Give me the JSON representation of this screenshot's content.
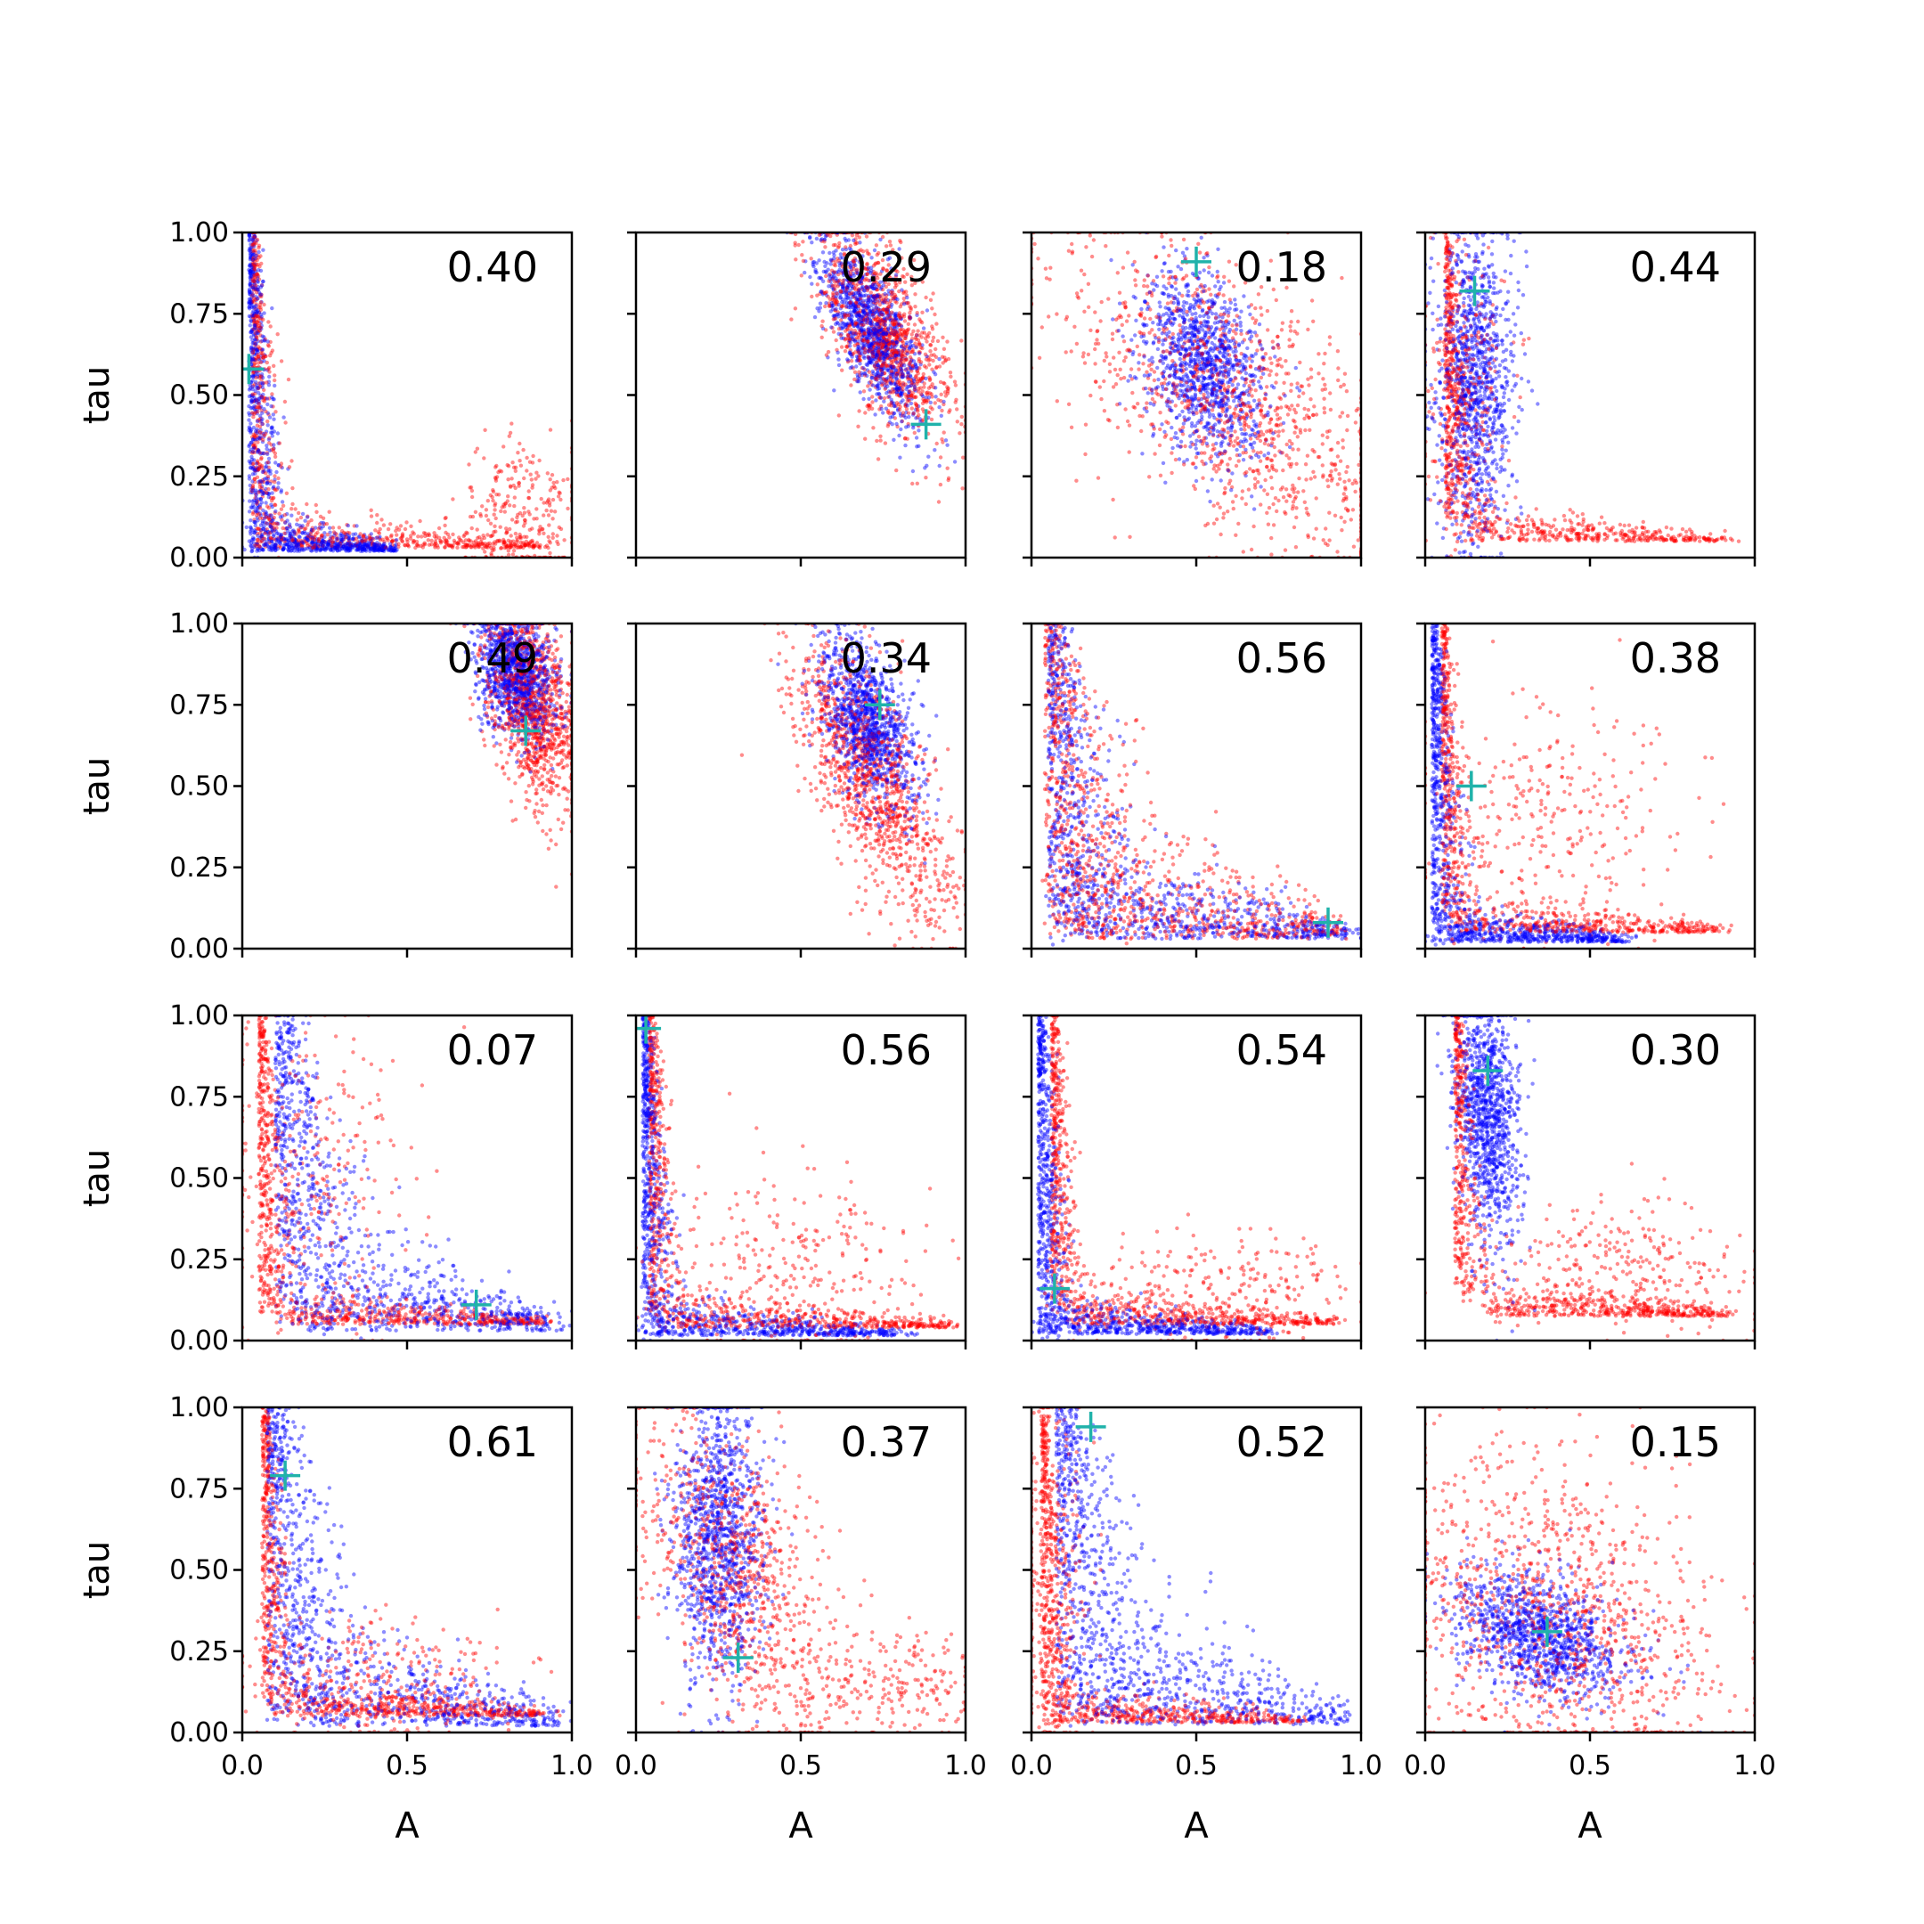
{
  "chart_data": {
    "type": "scatter",
    "layout": "4x4 grid of scatter subplots",
    "xlabel": "A",
    "ylabel": "tau",
    "xlim": [
      0,
      1
    ],
    "ylim": [
      0,
      1
    ],
    "xticks": [
      "0.0",
      "0.5",
      "1.0"
    ],
    "yticks": [
      "0.00",
      "0.25",
      "0.50",
      "0.75",
      "1.00"
    ],
    "colors": {
      "series_a": "#0000ff",
      "series_b": "#ff0000",
      "marker": "#20b2aa"
    },
    "panels": [
      {
        "corr": "0.40",
        "marker": [
          0.02,
          0.58
        ],
        "blue": {
          "shape": "L",
          "cx": 0.04,
          "cy": 0.04,
          "tail": 0.45
        },
        "red": {
          "shape": "L",
          "cx": 0.06,
          "cy": 0.06,
          "tail": 0.9,
          "extra": [
            0.85,
            0.12,
            0.1,
            0.12
          ]
        }
      },
      {
        "corr": "0.29",
        "marker": [
          0.88,
          0.41
        ],
        "blue": {
          "shape": "band",
          "cx": 0.72,
          "cy": 0.7,
          "sx": 0.08,
          "sy": 0.14,
          "rho": -0.7
        },
        "red": {
          "shape": "band",
          "cx": 0.75,
          "cy": 0.7,
          "sx": 0.1,
          "sy": 0.16,
          "rho": -0.6
        }
      },
      {
        "corr": "0.18",
        "marker": [
          0.5,
          0.91
        ],
        "blue": {
          "shape": "blob",
          "cx": 0.52,
          "cy": 0.6,
          "sx": 0.09,
          "sy": 0.14,
          "rho": -0.3
        },
        "red": {
          "shape": "blob",
          "cx": 0.6,
          "cy": 0.5,
          "sx": 0.25,
          "sy": 0.25,
          "rho": -0.6
        }
      },
      {
        "corr": "0.44",
        "marker": [
          0.15,
          0.82
        ],
        "blue": {
          "shape": "vbar",
          "cx": 0.15,
          "cy": 0.55,
          "sx": 0.06,
          "sy": 0.25,
          "rho": 0
        },
        "red": {
          "shape": "L",
          "cx": 0.12,
          "cy": 0.1,
          "tail": 0.9,
          "extra": [
            0.12,
            0.5,
            0.07,
            0.22
          ]
        }
      },
      {
        "corr": "0.49",
        "marker": [
          0.86,
          0.67
        ],
        "blue": {
          "shape": "blob",
          "cx": 0.83,
          "cy": 0.85,
          "sx": 0.06,
          "sy": 0.1,
          "rho": -0.3
        },
        "red": {
          "shape": "blob",
          "cx": 0.88,
          "cy": 0.75,
          "sx": 0.07,
          "sy": 0.15,
          "rho": -0.4
        }
      },
      {
        "corr": "0.34",
        "marker": [
          0.74,
          0.75
        ],
        "blue": {
          "shape": "blob",
          "cx": 0.7,
          "cy": 0.7,
          "sx": 0.07,
          "sy": 0.13,
          "rho": -0.5
        },
        "red": {
          "shape": "band",
          "cx": 0.72,
          "cy": 0.5,
          "sx": 0.12,
          "sy": 0.22,
          "rho": -0.7
        }
      },
      {
        "corr": "0.56",
        "marker": [
          0.9,
          0.08
        ],
        "blue": {
          "shape": "L",
          "cx": 0.1,
          "cy": 0.06,
          "tail": 0.95,
          "decay": 0.22
        },
        "red": {
          "shape": "L",
          "cx": 0.08,
          "cy": 0.06,
          "tail": 0.95,
          "decay": 0.3
        }
      },
      {
        "corr": "0.38",
        "marker": [
          0.14,
          0.5
        ],
        "blue": {
          "shape": "L",
          "cx": 0.04,
          "cy": 0.04,
          "tail": 0.6
        },
        "red": {
          "shape": "L",
          "cx": 0.1,
          "cy": 0.1,
          "tail": 0.9,
          "extra": [
            0.35,
            0.4,
            0.2,
            0.2
          ]
        }
      },
      {
        "corr": "0.07",
        "marker": [
          0.71,
          0.11
        ],
        "blue": {
          "shape": "L",
          "cx": 0.2,
          "cy": 0.06,
          "tail": 0.95,
          "decay": 0.25
        },
        "red": {
          "shape": "L",
          "cx": 0.1,
          "cy": 0.1,
          "tail": 0.9,
          "extra": [
            0.2,
            0.5,
            0.15,
            0.25
          ]
        }
      },
      {
        "corr": "0.56",
        "marker": [
          0.03,
          0.96
        ],
        "blue": {
          "shape": "L",
          "cx": 0.04,
          "cy": 0.03,
          "tail": 0.8
        },
        "red": {
          "shape": "L",
          "cx": 0.08,
          "cy": 0.08,
          "tail": 0.95,
          "extra": [
            0.5,
            0.2,
            0.2,
            0.15
          ]
        }
      },
      {
        "corr": "0.54",
        "marker": [
          0.07,
          0.16
        ],
        "blue": {
          "shape": "L",
          "cx": 0.04,
          "cy": 0.04,
          "tail": 0.7
        },
        "red": {
          "shape": "L",
          "cx": 0.12,
          "cy": 0.1,
          "tail": 0.9,
          "extra": [
            0.6,
            0.15,
            0.2,
            0.1
          ]
        }
      },
      {
        "corr": "0.30",
        "marker": [
          0.19,
          0.83
        ],
        "blue": {
          "shape": "vbar",
          "cx": 0.19,
          "cy": 0.7,
          "sx": 0.05,
          "sy": 0.2,
          "rho": -0.3
        },
        "red": {
          "shape": "L",
          "cx": 0.18,
          "cy": 0.15,
          "tail": 0.9,
          "extra": [
            0.6,
            0.2,
            0.2,
            0.1
          ]
        }
      },
      {
        "corr": "0.61",
        "marker": [
          0.13,
          0.79
        ],
        "blue": {
          "shape": "L",
          "cx": 0.15,
          "cy": 0.04,
          "tail": 0.95,
          "decay": 0.25
        },
        "red": {
          "shape": "L",
          "cx": 0.12,
          "cy": 0.1,
          "tail": 0.9,
          "extra": [
            0.4,
            0.15,
            0.2,
            0.1
          ]
        }
      },
      {
        "corr": "0.37",
        "marker": [
          0.31,
          0.23
        ],
        "blue": {
          "shape": "vbar",
          "cx": 0.25,
          "cy": 0.6,
          "sx": 0.07,
          "sy": 0.22,
          "rho": 0
        },
        "red": {
          "shape": "vbar",
          "cx": 0.3,
          "cy": 0.5,
          "sx": 0.15,
          "sy": 0.25,
          "rho": -0.5,
          "extra": [
            0.75,
            0.15,
            0.15,
            0.08
          ]
        }
      },
      {
        "corr": "0.52",
        "marker": [
          0.18,
          0.94
        ],
        "blue": {
          "shape": "L",
          "cx": 0.15,
          "cy": 0.05,
          "tail": 0.95,
          "decay": 0.3
        },
        "red": {
          "shape": "L",
          "cx": 0.06,
          "cy": 0.06,
          "tail": 0.8,
          "extra": [
            0.05,
            0.45,
            0.06,
            0.3
          ]
        }
      },
      {
        "corr": "0.15",
        "marker": [
          0.37,
          0.31
        ],
        "blue": {
          "shape": "blob",
          "cx": 0.35,
          "cy": 0.3,
          "sx": 0.13,
          "sy": 0.1,
          "rho": -0.4
        },
        "red": {
          "shape": "blob",
          "cx": 0.4,
          "cy": 0.35,
          "sx": 0.25,
          "sy": 0.25,
          "rho": -0.3
        }
      }
    ]
  }
}
